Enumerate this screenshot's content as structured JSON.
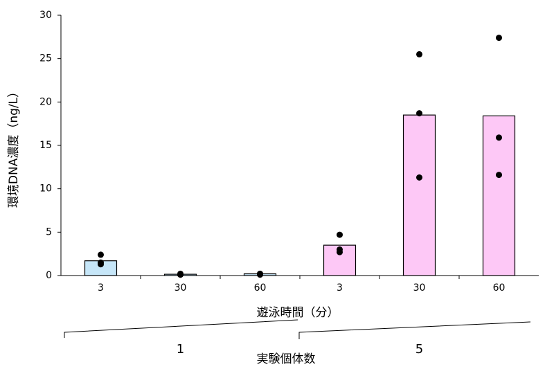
{
  "chart_data": {
    "type": "bar",
    "y_axis_title": "環境DNA濃度（ng/L）",
    "x_axis_title": "遊泳時間（分）",
    "group_axis_title": "実験個体数",
    "group_labels": [
      "1",
      "5"
    ],
    "categories": [
      "3",
      "30",
      "60",
      "3",
      "30",
      "60"
    ],
    "values": [
      1.7,
      0.15,
      0.2,
      3.5,
      18.5,
      18.4
    ],
    "colors": [
      "#c6e6f8",
      "#c6e6f8",
      "#c6e6f8",
      "#fdc8f6",
      "#fdc8f6",
      "#fdc8f6"
    ],
    "replicates": [
      [
        2.4,
        1.5,
        1.3
      ],
      [
        0.2,
        0.1,
        0.1
      ],
      [
        0.2,
        0.2,
        0.1
      ],
      [
        4.7,
        3.0,
        2.7
      ],
      [
        25.5,
        18.7,
        11.3
      ],
      [
        27.4,
        15.9,
        11.6
      ]
    ],
    "point_color": "#000000",
    "ylim": [
      0,
      30
    ],
    "yticks": [
      0,
      5,
      10,
      15,
      20,
      25,
      30
    ],
    "grid": false
  }
}
